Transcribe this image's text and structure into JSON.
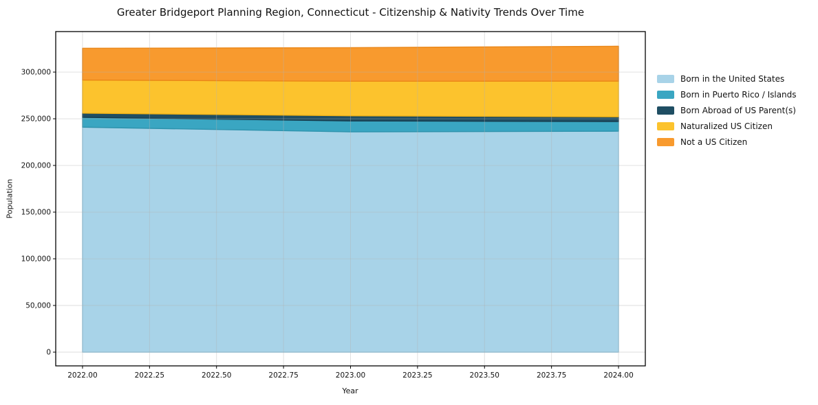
{
  "title": "Greater Bridgeport Planning Region, Connecticut - Citizenship & Nativity Trends Over Time",
  "chart_data": {
    "type": "area",
    "stacked": true,
    "title": "Greater Bridgeport Planning Region, Connecticut - Citizenship & Nativity Trends Over Time",
    "xlabel": "Year",
    "ylabel": "Population",
    "grid": true,
    "legend_position": "right",
    "x": [
      2022,
      2023,
      2024
    ],
    "series": [
      {
        "name": "Born in the United States",
        "color": "#a8d3e8",
        "edge": "#8cc3dc",
        "values": [
          241000,
          236000,
          236700
        ]
      },
      {
        "name": "Born in Puerto Rico / Islands",
        "color": "#3aa6c2",
        "edge": "#2e93ad",
        "values": [
          10500,
          11700,
          10300
        ]
      },
      {
        "name": "Born Abroad of US Parent(s)",
        "color": "#1f4e63",
        "edge": "#173d4e",
        "values": [
          4500,
          5500,
          5100
        ]
      },
      {
        "name": "Naturalized US Citizen",
        "color": "#fcc32d",
        "edge": "#eeb117",
        "values": [
          35500,
          37000,
          38200
        ]
      },
      {
        "name": "Not a US Citizen",
        "color": "#f89a2e",
        "edge": "#ea8617",
        "values": [
          34000,
          36000,
          37400
        ]
      }
    ],
    "xlim": [
      2021.9,
      2024.1
    ],
    "ylim": [
      -14700,
      343400
    ],
    "x_ticks": {
      "values": [
        2022.0,
        2022.25,
        2022.5,
        2022.75,
        2023.0,
        2023.25,
        2023.5,
        2023.75,
        2024.0
      ],
      "labels": [
        "2022.00",
        "2022.25",
        "2022.50",
        "2022.75",
        "2023.00",
        "2023.25",
        "2023.50",
        "2023.75",
        "2024.00"
      ]
    },
    "y_ticks": {
      "values": [
        0,
        50000,
        100000,
        150000,
        200000,
        250000,
        300000
      ],
      "labels": [
        "0",
        "50,000",
        "100,000",
        "150,000",
        "200,000",
        "250,000",
        "300,000"
      ]
    }
  }
}
